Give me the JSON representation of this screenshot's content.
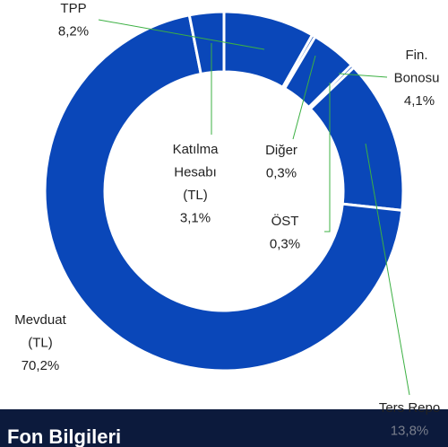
{
  "chart_data": {
    "type": "donut",
    "categories": [
      [
        "TPP"
      ],
      [
        "Diğer"
      ],
      [
        "Fin.",
        "Bonosu"
      ],
      [
        "ÖST"
      ],
      [
        "Ters Repo"
      ],
      [
        "Mevduat",
        "(TL)"
      ],
      [
        "Katılma",
        "Hesabı",
        "(TL)"
      ]
    ],
    "values": [
      8.2,
      0.3,
      4.1,
      0.3,
      13.8,
      70.2,
      3.1
    ],
    "value_labels": [
      "8,2%",
      "0,3%",
      "4,1%",
      "0,3%",
      "13,8%",
      "70,2%",
      "3,1%"
    ],
    "color": "#0a47b9"
  },
  "footer": {
    "title": "Fon Bilgileri"
  }
}
